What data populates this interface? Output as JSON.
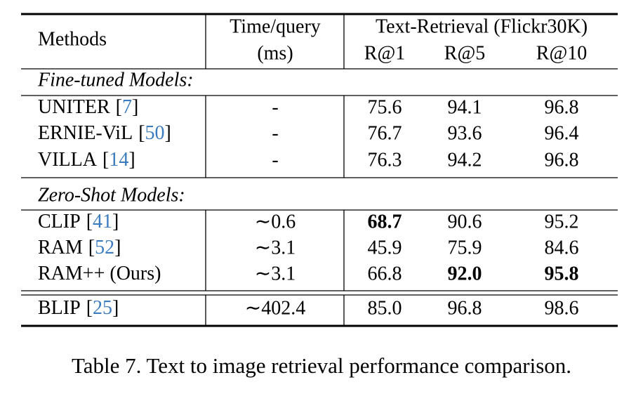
{
  "table": {
    "header": {
      "methods": "Methods",
      "time": [
        "Time/query",
        "(ms)"
      ],
      "group": "Text-Retrieval (Flickr30K)",
      "metrics": [
        "R@1",
        "R@5",
        "R@10"
      ]
    },
    "sections": [
      {
        "label": "Fine-tuned Models:",
        "rows": [
          {
            "method": "UNITER",
            "ref": "[7]",
            "time": "-",
            "scores": [
              "75.6",
              "94.1",
              "96.8"
            ]
          },
          {
            "method": "ERNIE-ViL",
            "ref": "[50]",
            "time": "-",
            "scores": [
              "76.7",
              "93.6",
              "96.4"
            ]
          },
          {
            "method": "VILLA",
            "ref": "[14]",
            "time": "-",
            "scores": [
              "76.3",
              "94.2",
              "96.8"
            ]
          }
        ]
      },
      {
        "label": "Zero-Shot Models:",
        "rows": [
          {
            "method": "CLIP",
            "ref": "[41]",
            "time": "∼0.6",
            "scores": [
              "68.7",
              "90.6",
              "95.2"
            ],
            "bold": [
              0
            ]
          },
          {
            "method": "RAM",
            "ref": "[52]",
            "time": "∼3.1",
            "scores": [
              "45.9",
              "75.9",
              "84.6"
            ]
          },
          {
            "method": "RAM++ (Ours)",
            "time": "∼3.1",
            "scores": [
              "66.8",
              "92.0",
              "95.8"
            ],
            "bold": [
              1,
              2
            ]
          }
        ]
      },
      {
        "rows": [
          {
            "method": "BLIP",
            "ref": "[25]",
            "time": "∼402.4",
            "scores": [
              "85.0",
              "96.8",
              "98.6"
            ]
          }
        ]
      }
    ]
  },
  "caption": "Table 7. Text to image retrieval performance comparison."
}
